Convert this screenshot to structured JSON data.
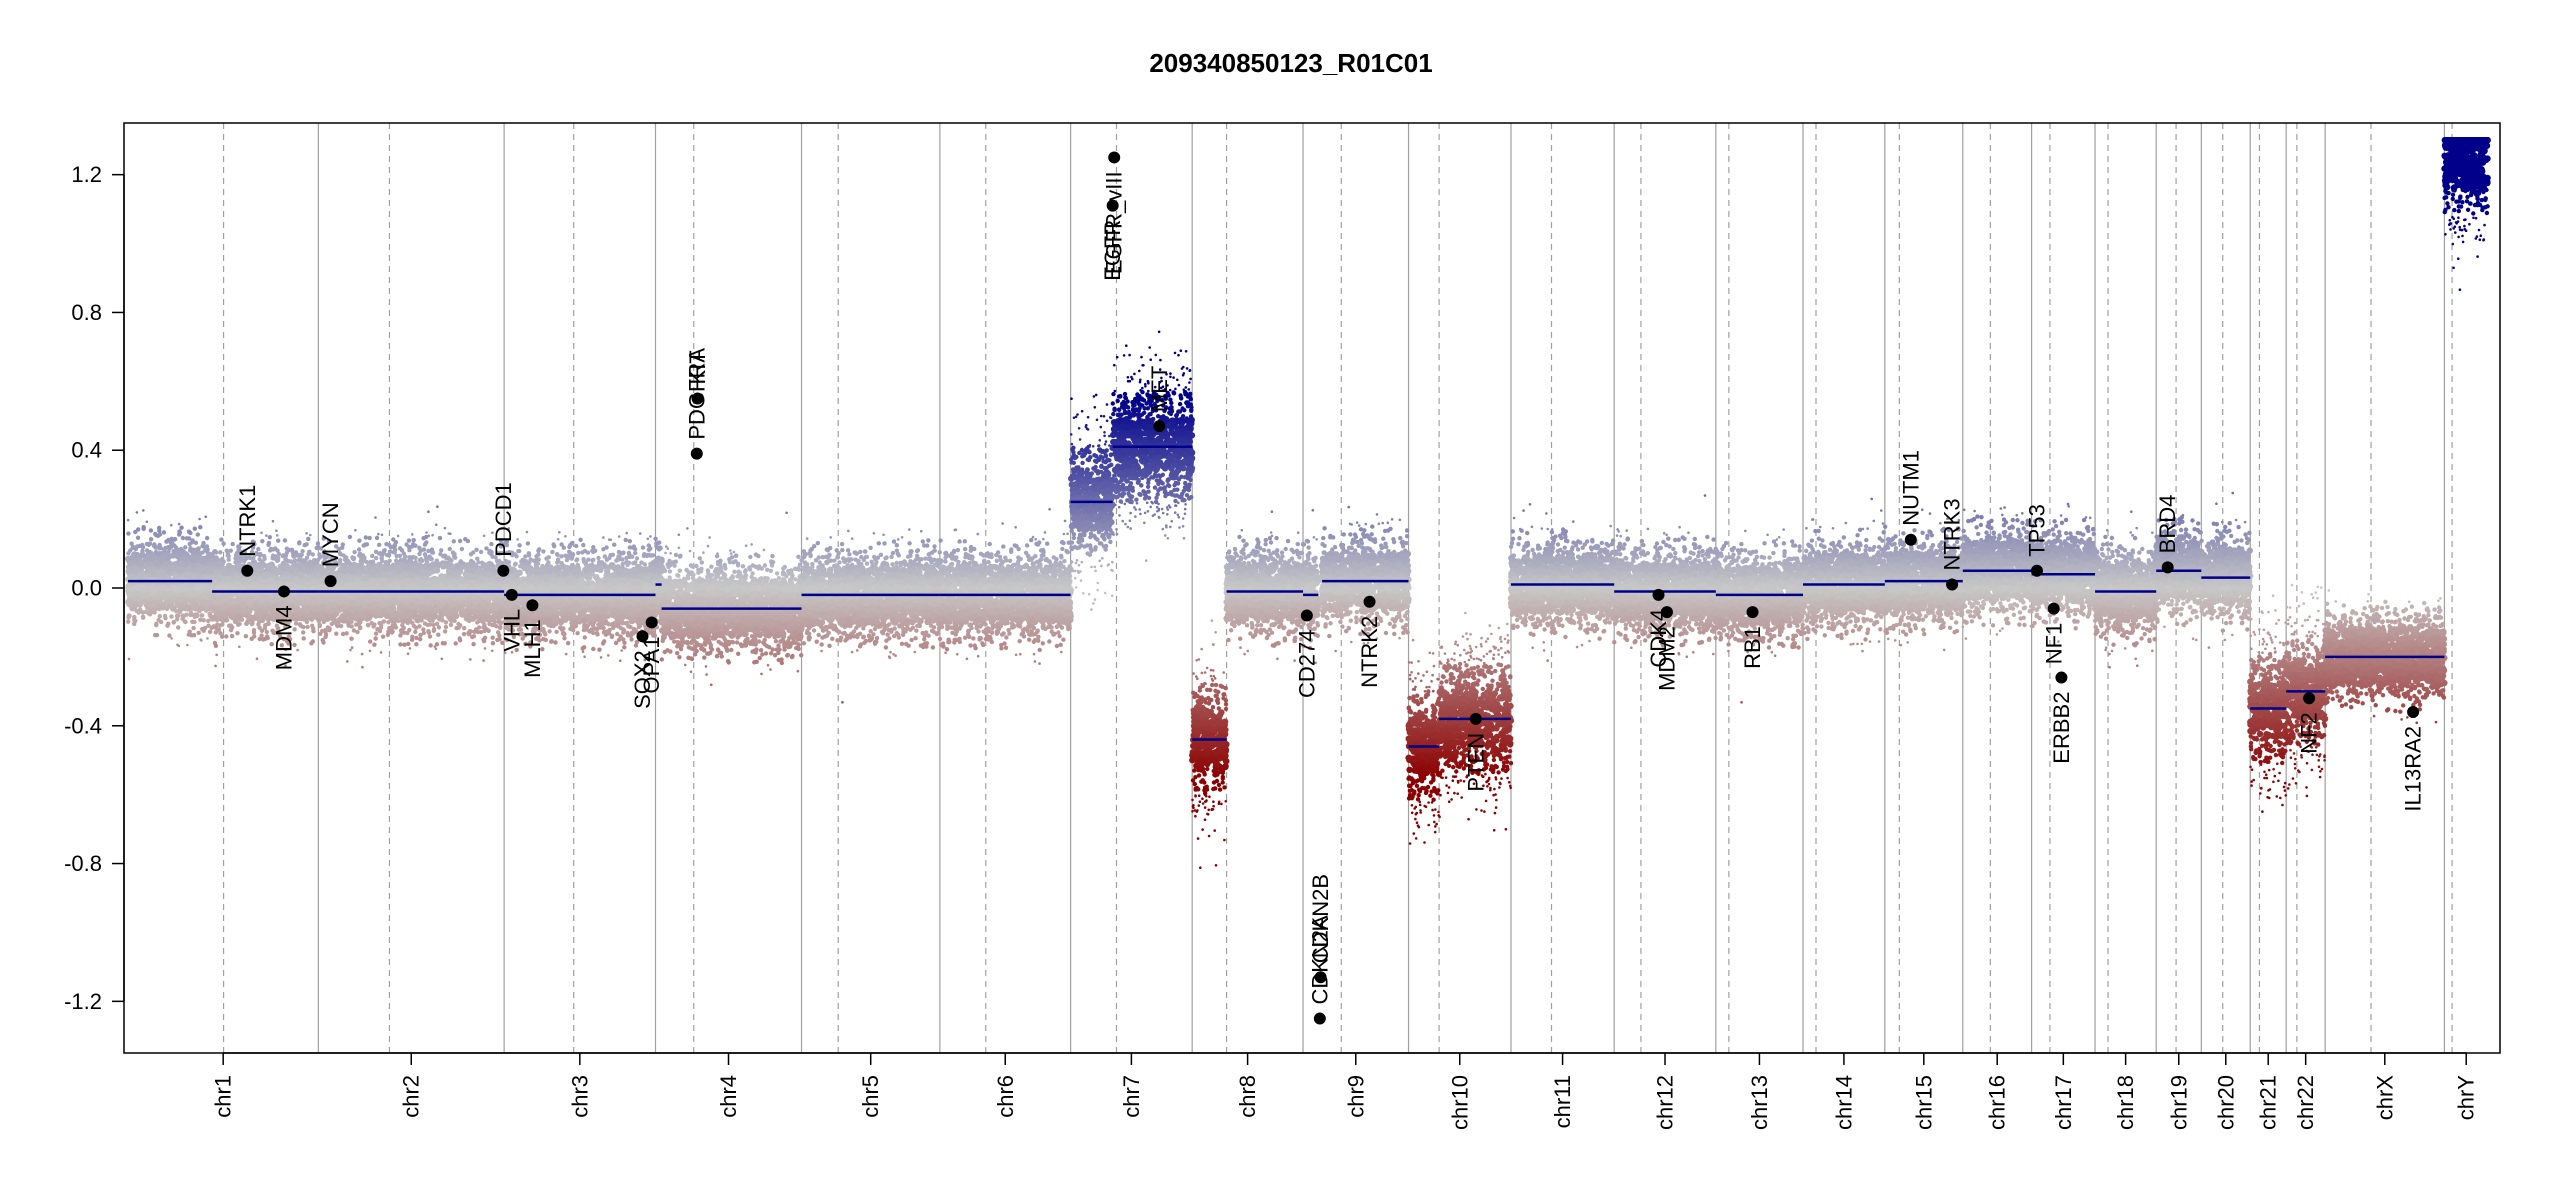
{
  "chart_data": {
    "type": "scatter",
    "title": "209340850123_R01C01",
    "xlabel": "",
    "ylabel": "",
    "ylim": [
      -1.35,
      1.35
    ],
    "yticks": [
      -1.2,
      -0.8,
      -0.4,
      0.0,
      0.4,
      0.8,
      1.2
    ],
    "ytick_labels": [
      "-1.2",
      "-0.8",
      "-0.4",
      "0.0",
      "0.4",
      "0.8",
      "1.2"
    ],
    "colors": {
      "gain": "#00008b",
      "loss": "#8b0000",
      "neutral": "#c8c8c8",
      "segment": "#00008b",
      "grid": "#a0a0a0"
    },
    "chromosomes": [
      {
        "name": "chr1",
        "size": 249,
        "cen": 125
      },
      {
        "name": "chr2",
        "size": 243,
        "cen": 93
      },
      {
        "name": "chr3",
        "size": 198,
        "cen": 91
      },
      {
        "name": "chr4",
        "size": 191,
        "cen": 50
      },
      {
        "name": "chr5",
        "size": 181,
        "cen": 48
      },
      {
        "name": "chr6",
        "size": 171,
        "cen": 60
      },
      {
        "name": "chr7",
        "size": 159,
        "cen": 60
      },
      {
        "name": "chr8",
        "size": 145,
        "cen": 45
      },
      {
        "name": "chr9",
        "size": 138,
        "cen": 50
      },
      {
        "name": "chr10",
        "size": 134,
        "cen": 40
      },
      {
        "name": "chr11",
        "size": 135,
        "cen": 53
      },
      {
        "name": "chr12",
        "size": 133,
        "cen": 35
      },
      {
        "name": "chr13",
        "size": 114,
        "cen": 17
      },
      {
        "name": "chr14",
        "size": 107,
        "cen": 17
      },
      {
        "name": "chr15",
        "size": 102,
        "cen": 19
      },
      {
        "name": "chr16",
        "size": 90,
        "cen": 36
      },
      {
        "name": "chr17",
        "size": 83,
        "cen": 24
      },
      {
        "name": "chr18",
        "size": 80,
        "cen": 17
      },
      {
        "name": "chr19",
        "size": 59,
        "cen": 26
      },
      {
        "name": "chr20",
        "size": 64,
        "cen": 28
      },
      {
        "name": "chr21",
        "size": 47,
        "cen": 12
      },
      {
        "name": "chr22",
        "size": 51,
        "cen": 14
      },
      {
        "name": "chrX",
        "size": 156,
        "cen": 60
      },
      {
        "name": "chrY",
        "size": 57,
        "cen": 10
      }
    ],
    "segments": [
      {
        "chr": "chr1",
        "start": 0,
        "end": 110,
        "value": 0.02
      },
      {
        "chr": "chr1",
        "start": 110,
        "end": 249,
        "value": -0.01
      },
      {
        "chr": "chr2",
        "start": 0,
        "end": 243,
        "value": -0.01
      },
      {
        "chr": "chr3",
        "start": 0,
        "end": 198,
        "value": -0.02
      },
      {
        "chr": "chr4",
        "start": 0,
        "end": 8,
        "value": 0.01
      },
      {
        "chr": "chr4",
        "start": 8,
        "end": 191,
        "value": -0.06
      },
      {
        "chr": "chr5",
        "start": 0,
        "end": 181,
        "value": -0.02
      },
      {
        "chr": "chr6",
        "start": 0,
        "end": 171,
        "value": -0.02
      },
      {
        "chr": "chr7",
        "start": 0,
        "end": 55,
        "value": 0.25
      },
      {
        "chr": "chr7",
        "start": 55,
        "end": 159,
        "value": 0.41
      },
      {
        "chr": "chr8",
        "start": 0,
        "end": 45,
        "value": -0.44
      },
      {
        "chr": "chr8",
        "start": 45,
        "end": 145,
        "value": -0.01
      },
      {
        "chr": "chr9",
        "start": 0,
        "end": 20,
        "value": -0.02
      },
      {
        "chr": "chr9",
        "start": 25,
        "end": 138,
        "value": 0.02
      },
      {
        "chr": "chr10",
        "start": 0,
        "end": 40,
        "value": -0.46
      },
      {
        "chr": "chr10",
        "start": 40,
        "end": 134,
        "value": -0.38
      },
      {
        "chr": "chr11",
        "start": 0,
        "end": 135,
        "value": 0.01
      },
      {
        "chr": "chr12",
        "start": 0,
        "end": 133,
        "value": -0.01
      },
      {
        "chr": "chr13",
        "start": 0,
        "end": 114,
        "value": -0.02
      },
      {
        "chr": "chr14",
        "start": 0,
        "end": 107,
        "value": 0.01
      },
      {
        "chr": "chr15",
        "start": 0,
        "end": 102,
        "value": 0.02
      },
      {
        "chr": "chr16",
        "start": 0,
        "end": 90,
        "value": 0.05
      },
      {
        "chr": "chr17",
        "start": 0,
        "end": 83,
        "value": 0.04
      },
      {
        "chr": "chr18",
        "start": 0,
        "end": 80,
        "value": -0.01
      },
      {
        "chr": "chr19",
        "start": 0,
        "end": 59,
        "value": 0.05
      },
      {
        "chr": "chr20",
        "start": 0,
        "end": 64,
        "value": 0.03
      },
      {
        "chr": "chr21",
        "start": 0,
        "end": 47,
        "value": -0.35
      },
      {
        "chr": "chr22",
        "start": 0,
        "end": 51,
        "value": -0.3
      },
      {
        "chr": "chrX",
        "start": 0,
        "end": 156,
        "value": -0.2
      },
      {
        "chr": "chrY",
        "start": 0,
        "end": 57,
        "value": 1.24
      }
    ],
    "genes": [
      {
        "name": "NTRK1",
        "chr": "chr1",
        "pos": 156,
        "value": 0.05,
        "label_side": "up"
      },
      {
        "name": "MDM4",
        "chr": "chr1",
        "pos": 204,
        "value": -0.01,
        "label_side": "down"
      },
      {
        "name": "MYCN",
        "chr": "chr2",
        "pos": 16,
        "value": 0.02,
        "label_side": "up"
      },
      {
        "name": "PDCD1",
        "chr": "chr2",
        "pos": 242,
        "value": 0.05,
        "label_side": "up"
      },
      {
        "name": "VHL",
        "chr": "chr3",
        "pos": 10,
        "value": -0.02,
        "label_side": "down"
      },
      {
        "name": "MLH1",
        "chr": "chr3",
        "pos": 37,
        "value": -0.05,
        "label_side": "down"
      },
      {
        "name": "SOX2",
        "chr": "chr3",
        "pos": 181,
        "value": -0.14,
        "label_side": "down"
      },
      {
        "name": "OPA1",
        "chr": "chr3",
        "pos": 193,
        "value": -0.1,
        "label_side": "down"
      },
      {
        "name": "PDGFRA",
        "chr": "chr4",
        "pos": 54,
        "value": 0.39,
        "label_side": "up"
      },
      {
        "name": "KIT",
        "chr": "chr4",
        "pos": 55,
        "value": 0.55,
        "label_side": "up"
      },
      {
        "name": "EGFR",
        "chr": "chr7",
        "pos": 55,
        "value": 1.11,
        "label_side": "down"
      },
      {
        "name": "EGFR_vIII",
        "chr": "chr7",
        "pos": 57,
        "value": 1.25,
        "label_side": "down"
      },
      {
        "name": "MET",
        "chr": "chr7",
        "pos": 116,
        "value": 0.47,
        "label_side": "up"
      },
      {
        "name": "CD274",
        "chr": "chr9",
        "pos": 5,
        "value": -0.08,
        "label_side": "down"
      },
      {
        "name": "CDKN2A",
        "chr": "chr9",
        "pos": 22,
        "value": -1.25,
        "label_side": "up"
      },
      {
        "name": "CDKN2B",
        "chr": "chr9",
        "pos": 23,
        "value": -1.13,
        "label_side": "up"
      },
      {
        "name": "NTRK2",
        "chr": "chr9",
        "pos": 87,
        "value": -0.04,
        "label_side": "down"
      },
      {
        "name": "PTEN",
        "chr": "chr10",
        "pos": 88,
        "value": -0.38,
        "label_side": "down"
      },
      {
        "name": "CDK4",
        "chr": "chr12",
        "pos": 58,
        "value": -0.02,
        "label_side": "down"
      },
      {
        "name": "MDM2",
        "chr": "chr12",
        "pos": 69,
        "value": -0.07,
        "label_side": "down"
      },
      {
        "name": "RB1",
        "chr": "chr13",
        "pos": 48,
        "value": -0.07,
        "label_side": "down"
      },
      {
        "name": "NUTM1",
        "chr": "chr15",
        "pos": 34,
        "value": 0.14,
        "label_side": "up"
      },
      {
        "name": "NTRK3",
        "chr": "chr15",
        "pos": 88,
        "value": 0.01,
        "label_side": "up"
      },
      {
        "name": "TP53",
        "chr": "chr17",
        "pos": 7,
        "value": 0.05,
        "label_side": "up"
      },
      {
        "name": "NF1",
        "chr": "chr17",
        "pos": 29,
        "value": -0.06,
        "label_side": "down"
      },
      {
        "name": "ERBB2",
        "chr": "chr17",
        "pos": 39,
        "value": -0.26,
        "label_side": "down"
      },
      {
        "name": "BRD4",
        "chr": "chr19",
        "pos": 15,
        "value": 0.06,
        "label_side": "up"
      },
      {
        "name": "NF2",
        "chr": "chr22",
        "pos": 30,
        "value": -0.32,
        "label_side": "down"
      },
      {
        "name": "IL13RA2",
        "chr": "chrX",
        "pos": 115,
        "value": -0.36,
        "label_side": "down"
      }
    ]
  }
}
